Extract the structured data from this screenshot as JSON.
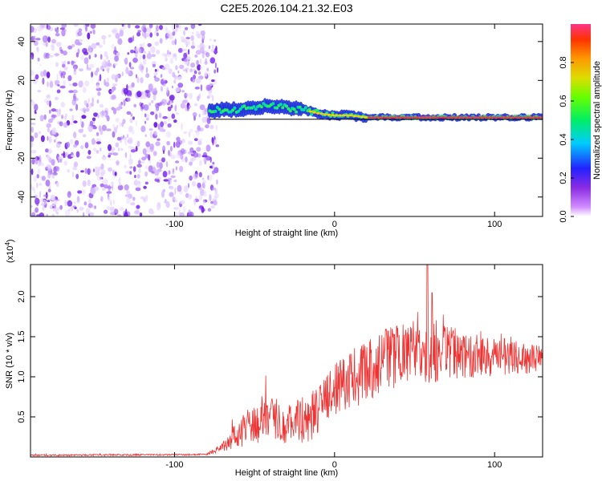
{
  "title": "C2E5.2026.104.21.32.E03",
  "colors": {
    "snr_line": "#ee3333",
    "spectrogram_noise": "#6a1ae0",
    "spectrogram_peak": "#ff2b4a"
  },
  "chart_data": [
    {
      "type": "heatmap",
      "name": "spectrogram",
      "xlabel": "Height of straight line (km)",
      "ylabel": "Frequency (Hz)",
      "xlim": [
        -190,
        130
      ],
      "ylim": [
        -50,
        49
      ],
      "xticks": [
        -100,
        0,
        100
      ],
      "yticks": [
        -40,
        -20,
        0,
        20,
        40
      ],
      "xtick_labels": [
        "-100",
        "0",
        "100"
      ],
      "ytick_labels": [
        "-40",
        "-20",
        "0",
        "20",
        "40"
      ],
      "noise_region_x": [
        -190,
        -78
      ],
      "signal_ridge": {
        "x": [
          -78,
          -70,
          -60,
          -50,
          -40,
          -30,
          -20,
          -10,
          0,
          10,
          20,
          30,
          40,
          50,
          60,
          70,
          80,
          90,
          100,
          110,
          120,
          130
        ],
        "freq": [
          4,
          5,
          5,
          6,
          7,
          6,
          5,
          3,
          2,
          2,
          1,
          1,
          1,
          1,
          1,
          1,
          1,
          1,
          1,
          1,
          1,
          1
        ]
      },
      "colorbar": {
        "label": "Normalized spectral amplitude",
        "range": [
          0,
          1
        ],
        "ticks": [
          0.0,
          0.2,
          0.4,
          0.6,
          0.8
        ],
        "tick_labels": [
          "0.0",
          "0.2",
          "0.4",
          "0.6",
          "0.8"
        ]
      }
    },
    {
      "type": "line",
      "name": "snr",
      "xlabel": "Height of straight line (km)",
      "ylabel": "SNR (10 * v/v)",
      "scale_label": "(x10",
      "scale_exponent": "4",
      "xlim": [
        -190,
        130
      ],
      "ylim": [
        0,
        2.4
      ],
      "xticks": [
        -100,
        0,
        100
      ],
      "yticks": [
        0.5,
        1.0,
        1.5,
        2.0
      ],
      "xtick_labels": [
        "-100",
        "0",
        "100"
      ],
      "ytick_labels": [
        "0.5",
        "1.0",
        "1.5",
        "2.0"
      ],
      "envelope": {
        "x": [
          -190,
          -80,
          -70,
          -60,
          -50,
          -40,
          -30,
          -20,
          -10,
          0,
          10,
          20,
          30,
          40,
          50,
          60,
          70,
          80,
          90,
          100,
          110,
          120,
          130
        ],
        "mean": [
          0.02,
          0.03,
          0.12,
          0.3,
          0.45,
          0.55,
          0.4,
          0.45,
          0.6,
          0.85,
          0.95,
          1.05,
          1.2,
          1.25,
          1.3,
          1.35,
          1.3,
          1.28,
          1.25,
          1.25,
          1.25,
          1.22,
          1.25
        ],
        "amplitude": [
          0.01,
          0.01,
          0.06,
          0.18,
          0.3,
          0.3,
          0.25,
          0.3,
          0.35,
          0.35,
          0.35,
          0.38,
          0.4,
          0.4,
          0.4,
          0.45,
          0.35,
          0.3,
          0.28,
          0.25,
          0.22,
          0.2,
          0.15
        ]
      },
      "notable_peaks": [
        {
          "x": 58,
          "y": 2.4
        },
        {
          "x": 61,
          "y": 2.05
        }
      ]
    }
  ]
}
